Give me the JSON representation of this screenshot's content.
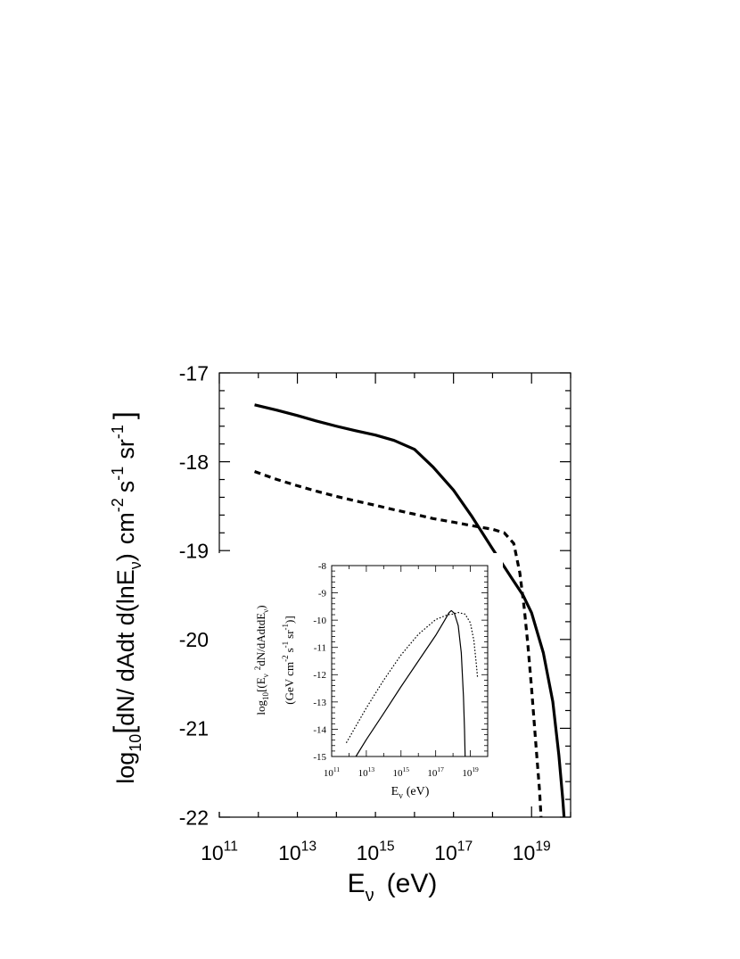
{
  "chart_data": [
    {
      "id": "main",
      "type": "line",
      "x_scale": "log",
      "xlim": [
        100000000000.0,
        1e+20
      ],
      "ylim": [
        -22,
        -17
      ],
      "xlabel": {
        "main": "E",
        "sub": "ν",
        "tail": "(eV)"
      },
      "ylabel": {
        "prefix": "log",
        "prefix_sub": "10",
        "bracket_open": "[",
        "body": "dN/ dAdt d(lnE",
        "body_sub": "ν",
        "body_close": ")",
        "units_a": "cm",
        "units_a_sup": "-2",
        "units_b": "s",
        "units_b_sup": "-1",
        "units_c": "sr",
        "units_c_sup": "-1",
        "bracket_close": "]"
      },
      "x_ticks": [
        {
          "value": 100000000000.0,
          "base": "10",
          "exp": "11"
        },
        {
          "value": 10000000000000.0,
          "base": "10",
          "exp": "13"
        },
        {
          "value": 1000000000000000.0,
          "base": "10",
          "exp": "15"
        },
        {
          "value": 1e+17,
          "base": "10",
          "exp": "17"
        },
        {
          "value": 1e+19,
          "base": "10",
          "exp": "19"
        }
      ],
      "y_ticks": [
        "-17",
        "-18",
        "-19",
        "-20",
        "-21",
        "-22"
      ],
      "series": [
        {
          "style": "solid",
          "color": "#000000",
          "points": [
            [
              800000000000.0,
              -17.36
            ],
            [
              3000000000000.0,
              -17.42
            ],
            [
              10000000000000.0,
              -17.48
            ],
            [
              30000000000000.0,
              -17.54
            ],
            [
              100000000000000.0,
              -17.6
            ],
            [
              300000000000000.0,
              -17.65
            ],
            [
              1000000000000000.0,
              -17.7
            ],
            [
              3000000000000000.0,
              -17.76
            ],
            [
              1e+16,
              -17.86
            ],
            [
              3e+16,
              -18.06
            ],
            [
              1e+17,
              -18.32
            ],
            [
              3e+17,
              -18.62
            ],
            [
              1e+18,
              -18.98
            ],
            [
              3e+18,
              -19.3
            ],
            [
              6e+18,
              -19.5
            ],
            [
              1e+19,
              -19.7
            ],
            [
              2e+19,
              -20.15
            ],
            [
              3.5e+19,
              -20.7
            ],
            [
              5e+19,
              -21.3
            ],
            [
              6.3e+19,
              -21.8
            ],
            [
              6.8e+19,
              -22.0
            ]
          ]
        },
        {
          "style": "dashed",
          "color": "#000000",
          "points": [
            [
              800000000000.0,
              -18.11
            ],
            [
              3000000000000.0,
              -18.2
            ],
            [
              10000000000000.0,
              -18.27
            ],
            [
              30000000000000.0,
              -18.33
            ],
            [
              100000000000000.0,
              -18.39
            ],
            [
              300000000000000.0,
              -18.44
            ],
            [
              1000000000000000.0,
              -18.49
            ],
            [
              3000000000000000.0,
              -18.54
            ],
            [
              1e+16,
              -18.59
            ],
            [
              3e+16,
              -18.64
            ],
            [
              1e+17,
              -18.68
            ],
            [
              3e+17,
              -18.72
            ],
            [
              1e+18,
              -18.76
            ],
            [
              2e+18,
              -18.8
            ],
            [
              3.5e+18,
              -18.92
            ],
            [
              5e+18,
              -19.25
            ],
            [
              6.5e+18,
              -19.65
            ],
            [
              8e+18,
              -20.05
            ],
            [
              1e+19,
              -20.55
            ],
            [
              1.3e+19,
              -21.2
            ],
            [
              1.6e+19,
              -21.7
            ],
            [
              1.75e+19,
              -22.0
            ]
          ]
        }
      ]
    },
    {
      "id": "inset",
      "type": "line",
      "x_scale": "log",
      "xlim": [
        100000000000.0,
        1e+20
      ],
      "ylim": [
        -15,
        -8
      ],
      "xlabel": {
        "main": "E",
        "sub": "ν",
        "tail": "(eV)"
      },
      "ylabel_line1": {
        "prefix": "log",
        "prefix_sub": "10",
        "open": "[(E",
        "e_sub": "ν",
        "e_sup": "2",
        "body": "dN/dAdtdE",
        "body_sub": "ν",
        "close": ")"
      },
      "ylabel_line2": {
        "open": "(GeV cm",
        "sup1": "-2",
        "mid1": "s",
        "sup2": "-1",
        "mid2": "sr",
        "sup3": "-1",
        "close": ")]"
      },
      "x_ticks": [
        {
          "value": 100000000000.0,
          "base": "10",
          "exp": "11"
        },
        {
          "value": 10000000000000.0,
          "base": "10",
          "exp": "13"
        },
        {
          "value": 1000000000000000.0,
          "base": "10",
          "exp": "15"
        },
        {
          "value": 1e+17,
          "base": "10",
          "exp": "17"
        },
        {
          "value": 1e+19,
          "base": "10",
          "exp": "19"
        }
      ],
      "y_ticks": [
        "-8",
        "-9",
        "-10",
        "-11",
        "-12",
        "-13",
        "-14",
        "-15"
      ],
      "series": [
        {
          "style": "solid",
          "color": "#000000",
          "points": [
            [
              2500000000000.0,
              -15.0
            ],
            [
              10000000000000.0,
              -14.38
            ],
            [
              100000000000000.0,
              -13.42
            ],
            [
              1000000000000000.0,
              -12.44
            ],
            [
              1e+16,
              -11.5
            ],
            [
              1e+17,
              -10.56
            ],
            [
              3e+17,
              -10.05
            ],
            [
              6e+17,
              -9.72
            ],
            [
              8e+17,
              -9.65
            ],
            [
              1.2e+18,
              -9.75
            ],
            [
              2e+18,
              -10.2
            ],
            [
              3e+18,
              -11.2
            ],
            [
              4e+18,
              -12.8
            ],
            [
              4.6e+18,
              -14.0
            ],
            [
              5e+18,
              -15.0
            ]
          ]
        },
        {
          "style": "dotted",
          "color": "#000000",
          "points": [
            [
              700000000000.0,
              -14.5
            ],
            [
              3000000000000.0,
              -13.8
            ],
            [
              10000000000000.0,
              -13.22
            ],
            [
              100000000000000.0,
              -12.2
            ],
            [
              1000000000000000.0,
              -11.28
            ],
            [
              1e+16,
              -10.52
            ],
            [
              1e+17,
              -9.98
            ],
            [
              5e+17,
              -9.8
            ],
            [
              1e+18,
              -9.78
            ],
            [
              2e+18,
              -9.72
            ],
            [
              5e+18,
              -9.78
            ],
            [
              1e+19,
              -10.1
            ],
            [
              1.6e+19,
              -10.75
            ],
            [
              2.2e+19,
              -11.6
            ],
            [
              2.6e+19,
              -12.1
            ]
          ]
        }
      ]
    }
  ]
}
